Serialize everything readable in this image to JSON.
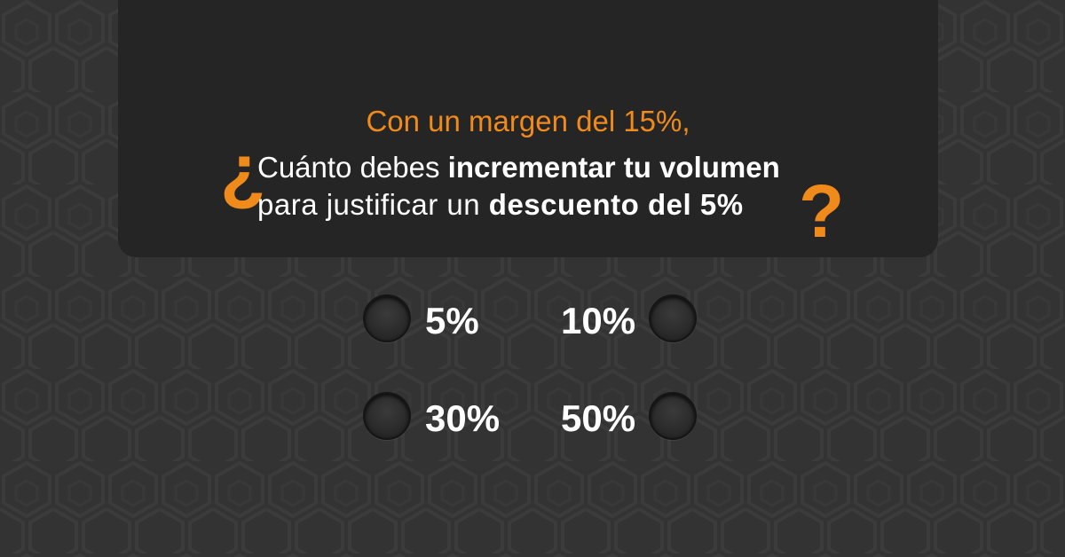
{
  "question": {
    "intro": "Con un margen del 15%,",
    "open_mark": "¿",
    "line1_normal": "Cuánto debes ",
    "line1_bold": "incrementar tu volumen",
    "line2_normal": "para justificar un ",
    "line2_bold": "descuento del 5%",
    "close_mark": "?"
  },
  "options": [
    {
      "label": "5%"
    },
    {
      "label": "10%"
    },
    {
      "label": "30%"
    },
    {
      "label": "50%"
    }
  ],
  "colors": {
    "accent": "#f08a1a",
    "background": "#333333",
    "panel": "#252525",
    "text": "#ffffff"
  }
}
